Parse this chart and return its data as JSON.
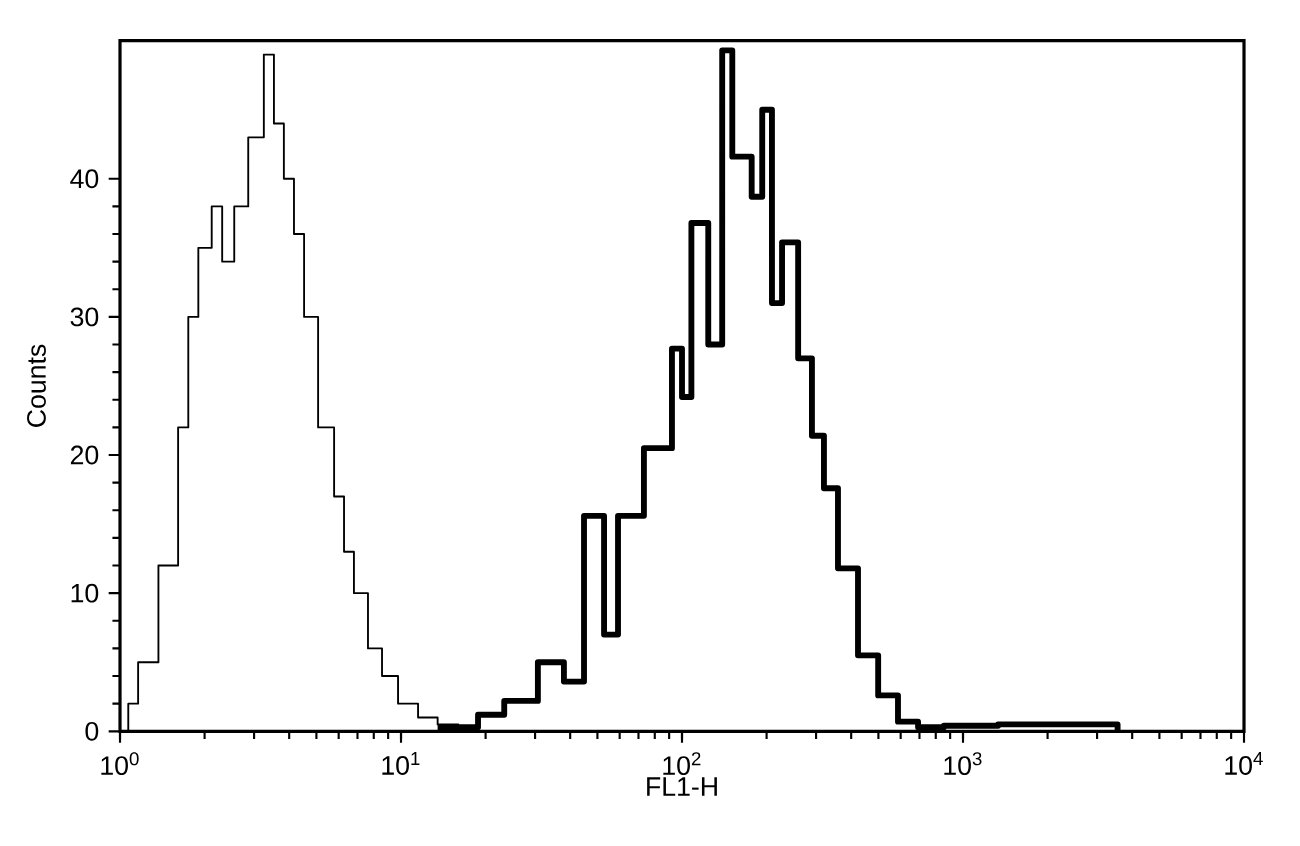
{
  "chart_data": {
    "type": "step",
    "xlabel": "FL1-H",
    "ylabel": "Counts",
    "log": "x",
    "grid": false,
    "marker": "none",
    "xlim": [
      1,
      10000
    ],
    "xticks": [
      {
        "value": 1,
        "label": "10$^{0}$"
      },
      {
        "value": 10,
        "label": "10$^{1}$"
      },
      {
        "value": 100,
        "label": "10$^{2}$"
      },
      {
        "value": 1000,
        "label": "10$^{3}$"
      },
      {
        "value": 10000,
        "label": "10$^{4}$"
      }
    ],
    "ylim": [
      0,
      50
    ],
    "yticks": [
      0,
      10,
      20,
      30,
      40
    ],
    "series": [
      {
        "color": "#000000",
        "x": [
          1.0,
          1.07,
          1.16,
          1.37,
          1.61,
          1.75,
          1.9,
          2.12,
          2.31,
          2.55,
          2.86,
          3.25,
          3.53,
          3.83,
          4.16,
          4.52,
          5.07,
          5.78,
          6.27,
          6.8,
          7.63,
          8.56,
          9.76,
          11.5,
          13.5,
          16.0,
          18.8
        ],
        "values": [
          0,
          2,
          5,
          12,
          22,
          30,
          35,
          38,
          34,
          38,
          43,
          49,
          44,
          40,
          36,
          30,
          22,
          17,
          13,
          10,
          6,
          4,
          2,
          1,
          0.5,
          0,
          0.5
        ]
      },
      {
        "color": "#000000",
        "x": [
          13.5,
          18.8,
          23.3,
          30.7,
          38.0,
          44.8,
          52.8,
          59.2,
          73.2,
          92.1,
          100,
          108,
          124,
          139,
          151,
          177,
          193,
          209,
          227,
          259,
          290,
          320,
          359,
          423,
          499,
          587,
          692,
          855,
          1333,
          2570,
          3550
        ],
        "values": [
          0.3,
          1.2,
          2.2,
          5,
          3.6,
          15.6,
          7,
          15.6,
          20.5,
          27.7,
          24.2,
          36.8,
          28,
          49.3,
          41.6,
          38.7,
          45,
          31,
          35.4,
          27,
          21.4,
          17.6,
          11.8,
          5.5,
          2.6,
          0.7,
          0.3,
          0.4,
          0.5,
          0.5,
          0
        ]
      }
    ]
  }
}
